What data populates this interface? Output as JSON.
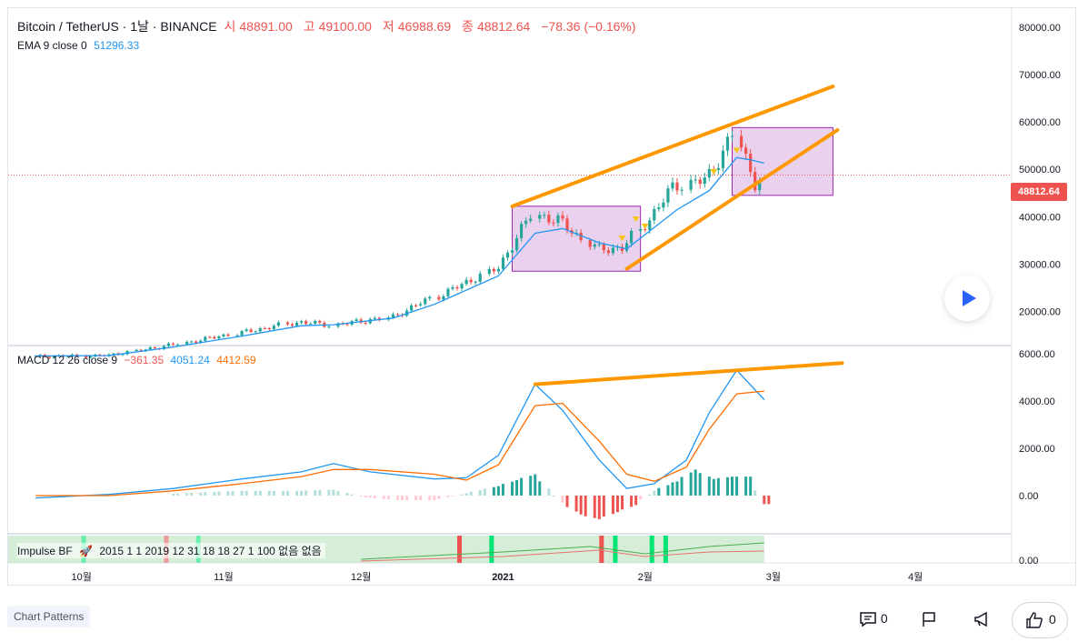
{
  "header": {
    "symbol": "Bitcoin / TetherUS · 1날 · BINANCE",
    "open_label": "시",
    "open": "48891.00",
    "high_label": "고",
    "high": "49100.00",
    "low_label": "저",
    "low": "46988.69",
    "close_label": "종",
    "close": "48812.64",
    "change": "−78.36 (−0.16%)"
  },
  "ema_legend": {
    "label": "EMA 9 close 0",
    "value": "51296.33"
  },
  "macd_legend": {
    "label": "MACD 12 26 close 9",
    "hist": "−361.35",
    "macd": "4051.24",
    "signal": "4412.59"
  },
  "impulse_legend": {
    "label": "Impulse BF",
    "params": "2015 1 1 2019 12 31 18 18 27 1 100 없음 없음"
  },
  "last_price_tag": "48812.64",
  "chart_data": [
    {
      "type": "candlestick",
      "price_ticks": [
        "80000.00",
        "70000.00",
        "60000.00",
        "50000.00",
        "40000.00",
        "30000.00",
        "20000.00"
      ],
      "y_range": [
        13000,
        84000
      ],
      "x_ticks": [
        "10월",
        "11월",
        "12월",
        "2021",
        "2월",
        "3월",
        "4월"
      ],
      "close_trend": [
        [
          "2020-09-21",
          10500
        ],
        [
          "2020-10-07",
          10700
        ],
        [
          "2020-10-21",
          12900
        ],
        [
          "2020-11-05",
          15500
        ],
        [
          "2020-11-18",
          17800
        ],
        [
          "2020-11-25",
          17100
        ],
        [
          "2020-12-08",
          18800
        ],
        [
          "2020-12-17",
          22800
        ],
        [
          "2020-12-31",
          29000
        ],
        [
          "2021-01-08",
          40500
        ],
        [
          "2021-01-14",
          39000
        ],
        [
          "2021-01-22",
          33000
        ],
        [
          "2021-01-28",
          33500
        ],
        [
          "2021-02-08",
          46500
        ],
        [
          "2021-02-15",
          48000
        ],
        [
          "2021-02-21",
          57500
        ],
        [
          "2021-02-24",
          49700
        ],
        [
          "2021-02-25",
          47000
        ],
        [
          "2021-02-27",
          48812
        ]
      ],
      "ema_trend": [
        [
          "2020-09-21",
          10600
        ],
        [
          "2020-10-07",
          10700
        ],
        [
          "2020-10-21",
          12500
        ],
        [
          "2020-11-05",
          14800
        ],
        [
          "2020-11-18",
          17000
        ],
        [
          "2020-11-25",
          17200
        ],
        [
          "2020-12-08",
          18600
        ],
        [
          "2020-12-17",
          21500
        ],
        [
          "2020-12-31",
          27500
        ],
        [
          "2021-01-08",
          36500
        ],
        [
          "2021-01-14",
          37500
        ],
        [
          "2021-01-22",
          34500
        ],
        [
          "2021-01-28",
          33200
        ],
        [
          "2021-02-08",
          41500
        ],
        [
          "2021-02-15",
          45500
        ],
        [
          "2021-02-21",
          52500
        ],
        [
          "2021-02-24",
          52000
        ],
        [
          "2021-02-27",
          51296
        ]
      ],
      "rectangles": [
        {
          "from": "2021-01-03",
          "to": "2021-01-31",
          "low": 28500,
          "high": 42200
        },
        {
          "from": "2021-02-20",
          "to": "2021-03-14",
          "low": 44500,
          "high": 58800
        }
      ],
      "channel_lines": [
        {
          "from": [
            "2021-01-03",
            42200
          ],
          "to": [
            "2021-03-14",
            67500
          ]
        },
        {
          "from": [
            "2021-01-28",
            29000
          ],
          "to": [
            "2021-03-15",
            58300
          ]
        }
      ]
    },
    {
      "type": "macd",
      "ticks": [
        "6000.00",
        "4000.00",
        "2000.00",
        "0.00"
      ],
      "y_range": [
        -1500,
        6300
      ],
      "macd_points": [
        [
          "2020-09-21",
          -100
        ],
        [
          "2020-10-07",
          50
        ],
        [
          "2020-10-21",
          300
        ],
        [
          "2020-11-05",
          700
        ],
        [
          "2020-11-18",
          1000
        ],
        [
          "2020-11-25",
          1350
        ],
        [
          "2020-12-03",
          1000
        ],
        [
          "2020-12-17",
          700
        ],
        [
          "2020-12-24",
          750
        ],
        [
          "2020-12-31",
          1700
        ],
        [
          "2021-01-08",
          4700
        ],
        [
          "2021-01-14",
          3600
        ],
        [
          "2021-01-22",
          1500
        ],
        [
          "2021-01-28",
          300
        ],
        [
          "2021-02-03",
          500
        ],
        [
          "2021-02-10",
          1500
        ],
        [
          "2021-02-15",
          3500
        ],
        [
          "2021-02-21",
          5300
        ],
        [
          "2021-02-27",
          4051
        ]
      ],
      "signal_points": [
        [
          "2020-09-21",
          0
        ],
        [
          "2020-10-07",
          0
        ],
        [
          "2020-10-21",
          200
        ],
        [
          "2020-11-05",
          500
        ],
        [
          "2020-11-18",
          800
        ],
        [
          "2020-11-25",
          1100
        ],
        [
          "2020-12-03",
          1100
        ],
        [
          "2020-12-17",
          900
        ],
        [
          "2020-12-24",
          650
        ],
        [
          "2020-12-31",
          1300
        ],
        [
          "2021-01-08",
          3800
        ],
        [
          "2021-01-14",
          3900
        ],
        [
          "2021-01-22",
          2300
        ],
        [
          "2021-01-28",
          900
        ],
        [
          "2021-02-03",
          600
        ],
        [
          "2021-02-10",
          1200
        ],
        [
          "2021-02-15",
          2800
        ],
        [
          "2021-02-21",
          4300
        ],
        [
          "2021-02-27",
          4412
        ]
      ],
      "histogram": [
        [
          "2020-10-21",
          80
        ],
        [
          "2020-11-05",
          200
        ],
        [
          "2020-11-18",
          200
        ],
        [
          "2020-11-25",
          250
        ],
        [
          "2020-12-03",
          -100
        ],
        [
          "2020-12-10",
          -200
        ],
        [
          "2020-12-17",
          -200
        ],
        [
          "2020-12-24",
          100
        ],
        [
          "2020-12-31",
          400
        ],
        [
          "2021-01-04",
          650
        ],
        [
          "2021-01-08",
          900
        ],
        [
          "2021-01-14",
          -300
        ],
        [
          "2021-01-18",
          -800
        ],
        [
          "2021-01-22",
          -1000
        ],
        [
          "2021-01-26",
          -700
        ],
        [
          "2021-01-30",
          -400
        ],
        [
          "2021-02-03",
          200
        ],
        [
          "2021-02-08",
          600
        ],
        [
          "2021-02-12",
          1100
        ],
        [
          "2021-02-16",
          700
        ],
        [
          "2021-02-20",
          800
        ],
        [
          "2021-02-24",
          800
        ],
        [
          "2021-02-27",
          -361
        ]
      ],
      "divergence_line": {
        "from": [
          "2021-01-08",
          4700
        ],
        "to": [
          "2021-03-16",
          5600
        ]
      }
    }
  ],
  "footer": {
    "tag": "Chart Patterns",
    "comments": "0",
    "likes": "0"
  }
}
